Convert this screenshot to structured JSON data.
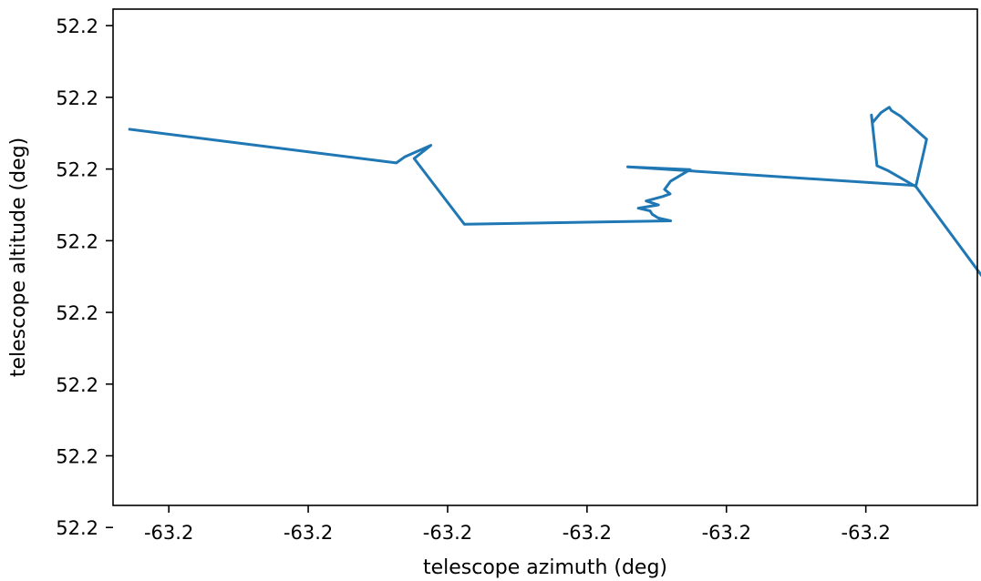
{
  "chart_data": {
    "type": "line",
    "title": "",
    "xlabel": "telescope azimuth (deg)",
    "ylabel": "telescope altitude (deg)",
    "xlim": [
      -63.2002,
      -63.19865
    ],
    "ylim": [
      52.19968,
      52.20058
    ],
    "x_tick_values": [
      -63.2001,
      -63.19985,
      -63.1996,
      -63.19935,
      -63.1991,
      -63.19885,
      -63.1986
    ],
    "x_tick_labels": [
      "-63.2",
      "-63.2",
      "-63.2",
      "-63.2",
      "-63.2",
      "-63.2",
      "-63.2"
    ],
    "y_tick_values": [
      52.20055,
      52.20042,
      52.20029,
      52.20016,
      52.20003,
      52.1999,
      52.19977,
      52.19964
    ],
    "y_tick_labels": [
      "52.2",
      "52.2",
      "52.2",
      "52.2",
      "52.2",
      "52.2",
      "52.2",
      "52.2"
    ],
    "grid": false,
    "legend": false,
    "series": [
      {
        "color": "#1f77b4",
        "x": [
          -63.20017,
          -63.199692,
          -63.199677,
          -63.19963,
          -63.19966,
          -63.19957,
          -63.1992,
          -63.199222,
          -63.199233,
          -63.199237,
          -63.199258,
          -63.199222,
          -63.199244,
          -63.199215,
          -63.199201,
          -63.199211,
          -63.1992,
          -63.199165,
          -63.199277,
          -63.19876,
          -63.198745,
          -63.198741,
          -63.198788,
          -63.198804,
          -63.198808,
          -63.198823,
          -63.198838,
          -63.19884,
          -63.19883,
          -63.19881,
          -63.19876,
          -63.19863
        ],
        "y": [
          52.200362,
          52.200301,
          52.200312,
          52.200333,
          52.200309,
          52.20019,
          52.200196,
          52.200201,
          52.200208,
          52.200214,
          52.200219,
          52.200225,
          52.200232,
          52.20024,
          52.200245,
          52.200253,
          52.200268,
          52.200289,
          52.200294,
          52.20026,
          52.200326,
          52.200344,
          52.200386,
          52.200396,
          52.200402,
          52.200392,
          52.200374,
          52.200388,
          52.200296,
          52.200287,
          52.200258,
          52.20008
        ]
      }
    ]
  }
}
